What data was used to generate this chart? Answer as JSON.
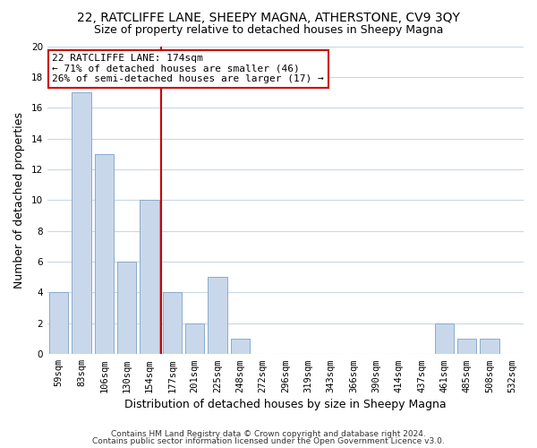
{
  "title": "22, RATCLIFFE LANE, SHEEPY MAGNA, ATHERSTONE, CV9 3QY",
  "subtitle": "Size of property relative to detached houses in Sheepy Magna",
  "xlabel": "Distribution of detached houses by size in Sheepy Magna",
  "ylabel": "Number of detached properties",
  "bar_categories": [
    "59sqm",
    "83sqm",
    "106sqm",
    "130sqm",
    "154sqm",
    "177sqm",
    "201sqm",
    "225sqm",
    "248sqm",
    "272sqm",
    "296sqm",
    "319sqm",
    "343sqm",
    "366sqm",
    "390sqm",
    "414sqm",
    "437sqm",
    "461sqm",
    "485sqm",
    "508sqm",
    "532sqm"
  ],
  "bar_values": [
    4,
    17,
    13,
    6,
    10,
    4,
    2,
    5,
    1,
    0,
    0,
    0,
    0,
    0,
    0,
    0,
    0,
    2,
    1,
    1,
    0
  ],
  "bar_color": "#c8d8ea",
  "bar_edgecolor": "#8aabcc",
  "vline_index": 5,
  "vline_color": "#cc0000",
  "ylim": [
    0,
    20
  ],
  "yticks": [
    0,
    2,
    4,
    6,
    8,
    10,
    12,
    14,
    16,
    18,
    20
  ],
  "annotation_title": "22 RATCLIFFE LANE: 174sqm",
  "annotation_line1": "← 71% of detached houses are smaller (46)",
  "annotation_line2": "26% of semi-detached houses are larger (17) →",
  "footer1": "Contains HM Land Registry data © Crown copyright and database right 2024.",
  "footer2": "Contains public sector information licensed under the Open Government Licence v3.0.",
  "title_fontsize": 10,
  "subtitle_fontsize": 9,
  "axis_label_fontsize": 9,
  "tick_fontsize": 7.5,
  "annotation_fontsize": 8,
  "footer_fontsize": 6.5,
  "background_color": "#ffffff",
  "grid_color": "#c8d8e8"
}
